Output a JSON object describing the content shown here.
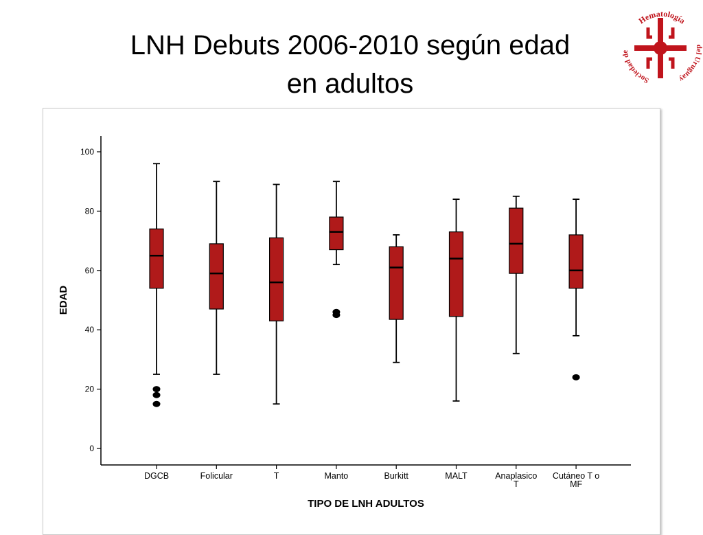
{
  "slide": {
    "title_line1": "LNH Debuts 2006-2010 según edad",
    "title_line2": "en adultos"
  },
  "logo": {
    "text_top": "Hematología",
    "text_left": "Sociedad de",
    "text_right": "del Uruguay",
    "color": "#c0141c"
  },
  "chart_data": {
    "type": "boxplot",
    "xlabel": "TIPO DE LNH ADULTOS",
    "ylabel": "EDAD",
    "ylim": [
      0,
      100
    ],
    "yticks": [
      0,
      20,
      40,
      60,
      80,
      100
    ],
    "grid": false,
    "box_color": "#b01a1a",
    "categories": [
      {
        "label_lines": [
          "DGCB"
        ],
        "min": 25,
        "q1": 54,
        "median": 65,
        "q3": 74,
        "max": 96,
        "outliers": [
          20,
          18,
          15
        ]
      },
      {
        "label_lines": [
          "Folicular"
        ],
        "min": 25,
        "q1": 47,
        "median": 59,
        "q3": 69,
        "max": 90,
        "outliers": []
      },
      {
        "label_lines": [
          "T"
        ],
        "min": 15,
        "q1": 43,
        "median": 56,
        "q3": 71,
        "max": 89,
        "outliers": []
      },
      {
        "label_lines": [
          "Manto"
        ],
        "min": 62,
        "q1": 67,
        "median": 73,
        "q3": 78,
        "max": 90,
        "outliers": [
          46,
          45
        ]
      },
      {
        "label_lines": [
          "Burkitt"
        ],
        "min": 29,
        "q1": 43.5,
        "median": 61,
        "q3": 68,
        "max": 72,
        "outliers": []
      },
      {
        "label_lines": [
          "MALT"
        ],
        "min": 16,
        "q1": 44.5,
        "median": 64,
        "q3": 73,
        "max": 84,
        "outliers": []
      },
      {
        "label_lines": [
          "Anaplasico",
          "T"
        ],
        "min": 32,
        "q1": 59,
        "median": 69,
        "q3": 81,
        "max": 85,
        "outliers": []
      },
      {
        "label_lines": [
          "Cutáneo T o",
          "MF"
        ],
        "min": 38,
        "q1": 54,
        "median": 60,
        "q3": 72,
        "max": 84,
        "outliers": [
          24
        ]
      }
    ]
  }
}
